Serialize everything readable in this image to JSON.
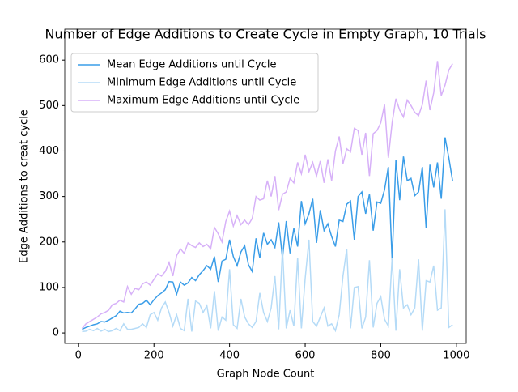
{
  "chart_data": {
    "type": "line",
    "title": "Number of Edge Additions to Create Cycle in Empty Graph, 10 Trials",
    "x_label": "Graph Node Count",
    "y_label": "Edge Additions to creat cycle",
    "x": [
      10,
      20,
      30,
      40,
      50,
      60,
      70,
      80,
      90,
      100,
      110,
      120,
      130,
      140,
      150,
      160,
      170,
      180,
      190,
      200,
      210,
      220,
      230,
      240,
      250,
      260,
      270,
      280,
      290,
      300,
      310,
      320,
      330,
      340,
      350,
      360,
      370,
      380,
      390,
      400,
      410,
      420,
      430,
      440,
      450,
      460,
      470,
      480,
      490,
      500,
      510,
      520,
      530,
      540,
      550,
      560,
      570,
      580,
      590,
      600,
      610,
      620,
      630,
      640,
      650,
      660,
      670,
      680,
      690,
      700,
      710,
      720,
      730,
      740,
      750,
      760,
      770,
      780,
      790,
      800,
      810,
      820,
      830,
      840,
      850,
      860,
      870,
      880,
      890,
      900,
      910,
      920,
      930,
      940,
      950,
      960,
      970,
      980,
      990
    ],
    "series": [
      {
        "name": "Mean Edge Additions until Cycle",
        "color": "#3a9de8",
        "values": [
          8,
          12,
          15,
          18,
          20,
          25,
          24,
          28,
          33,
          38,
          48,
          44,
          45,
          44,
          53,
          63,
          65,
          72,
          62,
          73,
          82,
          88,
          95,
          113,
          112,
          85,
          112,
          105,
          110,
          122,
          115,
          128,
          137,
          148,
          140,
          168,
          112,
          158,
          162,
          205,
          168,
          148,
          178,
          192,
          150,
          135,
          208,
          165,
          220,
          195,
          205,
          188,
          243,
          165,
          246,
          175,
          230,
          190,
          290,
          240,
          262,
          295,
          198,
          270,
          225,
          240,
          212,
          190,
          248,
          245,
          283,
          290,
          205,
          300,
          310,
          262,
          305,
          225,
          288,
          285,
          315,
          365,
          160,
          380,
          292,
          388,
          335,
          340,
          302,
          310,
          365,
          230,
          370,
          320,
          375,
          295,
          430,
          385,
          334
        ]
      },
      {
        "name": "Minimum Edge Additions until Cycle",
        "color": "#b5dbf7",
        "values": [
          3,
          4,
          8,
          5,
          10,
          4,
          8,
          3,
          5,
          10,
          5,
          20,
          8,
          8,
          10,
          12,
          20,
          12,
          40,
          45,
          28,
          55,
          68,
          45,
          15,
          40,
          10,
          5,
          75,
          3,
          70,
          65,
          45,
          60,
          10,
          92,
          5,
          35,
          28,
          140,
          18,
          10,
          75,
          35,
          20,
          12,
          25,
          88,
          45,
          25,
          55,
          125,
          8,
          185,
          10,
          50,
          15,
          165,
          10,
          120,
          205,
          25,
          15,
          35,
          55,
          15,
          20,
          5,
          40,
          125,
          185,
          10,
          100,
          102,
          10,
          35,
          160,
          12,
          65,
          80,
          30,
          15,
          165,
          5,
          140,
          55,
          62,
          40,
          55,
          162,
          5,
          115,
          112,
          148,
          50,
          55,
          272,
          12,
          18
        ]
      },
      {
        "name": "Maximum Edge Additions until Cycle",
        "color": "#d7b1f8",
        "values": [
          10,
          20,
          25,
          30,
          35,
          42,
          45,
          50,
          62,
          65,
          72,
          68,
          102,
          85,
          98,
          95,
          108,
          112,
          105,
          118,
          130,
          125,
          135,
          155,
          125,
          170,
          185,
          175,
          198,
          192,
          188,
          198,
          190,
          195,
          185,
          232,
          218,
          200,
          245,
          268,
          235,
          258,
          238,
          248,
          238,
          252,
          300,
          292,
          295,
          335,
          300,
          345,
          270,
          305,
          310,
          340,
          330,
          375,
          350,
          392,
          355,
          375,
          345,
          378,
          330,
          382,
          335,
          400,
          432,
          372,
          405,
          398,
          450,
          445,
          392,
          440,
          345,
          438,
          445,
          462,
          502,
          385,
          462,
          515,
          490,
          475,
          512,
          500,
          485,
          478,
          502,
          555,
          490,
          528,
          598,
          522,
          545,
          578,
          592
        ]
      }
    ],
    "xlim": [
      -36,
      1026
    ],
    "xticks": [
      0,
      200,
      400,
      600,
      800,
      1000
    ],
    "ylim": [
      -23,
      668
    ],
    "yticks": [
      0,
      100,
      200,
      300,
      400,
      500,
      600
    ],
    "legend": "upper left"
  }
}
